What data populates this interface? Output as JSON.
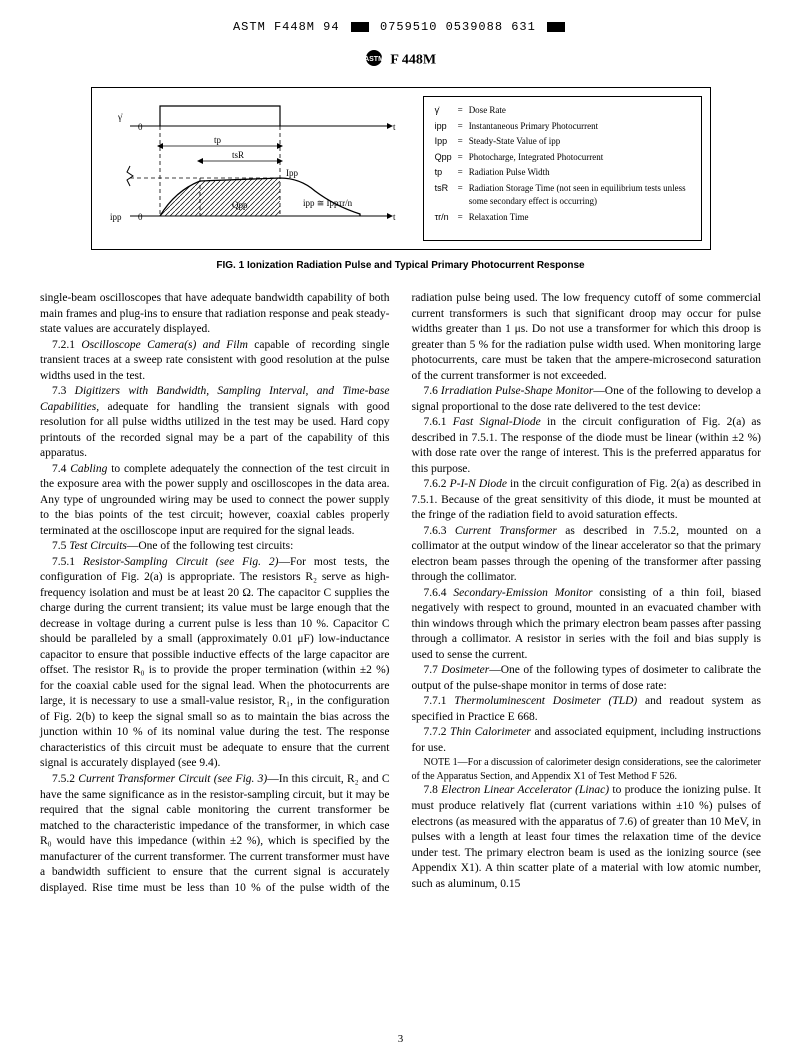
{
  "top_code": {
    "parts": [
      "ASTM F448M 94",
      "0759510 0539088 631"
    ]
  },
  "doc_header": "F 448M",
  "figure": {
    "caption": "FIG. 1   Ionization Radiation Pulse and Typical Primary Photocurrent Response",
    "labels": {
      "gamma_dot": "γ̇",
      "ipp_lower": "ipp",
      "Ipp": "Ipp",
      "tp": "tp",
      "tsR": "tsR",
      "Qpp": "Qpp",
      "approx": "ipp ≅ Ippτr/n",
      "t1": "t",
      "t2": "t",
      "zero1": "0",
      "zero2": "0"
    },
    "legend": [
      {
        "sym": "γ̇",
        "eq": "=",
        "desc": "Dose Rate"
      },
      {
        "sym": "ipp",
        "eq": "=",
        "desc": "Instantaneous Primary Photocurrent"
      },
      {
        "sym": "Ipp",
        "eq": "=",
        "desc": "Steady-State Value of ipp"
      },
      {
        "sym": "Qpp",
        "eq": "=",
        "desc": "Photocharge, Integrated Photocurrent"
      },
      {
        "sym": "tp",
        "eq": "=",
        "desc": "Radiation Pulse Width"
      },
      {
        "sym": "tsR",
        "eq": "=",
        "desc": "Radiation Storage Time (not seen in equilibrium tests unless some secondary effect is occurring)"
      },
      {
        "sym": "τr/n",
        "eq": "=",
        "desc": "Relaxation Time"
      }
    ]
  },
  "body": {
    "p1": "single-beam oscilloscopes that have adequate bandwidth capability of both main frames and plug-ins to ensure that radiation response and peak steady-state values are accurately displayed.",
    "p2_lead": "7.2.1 ",
    "p2_italic": "Oscilloscope Camera(s) and Film",
    "p2_rest": " capable of recording single transient traces at a sweep rate consistent with good resolution at the pulse widths used in the test.",
    "p3_lead": "7.3 ",
    "p3_italic": "Digitizers with Bandwidth, Sampling Interval, and Time-base Capabilities,",
    "p3_rest": " adequate for handling the transient signals with good resolution for all pulse widths utilized in the test may be used. Hard copy printouts of the recorded signal may be a part of the capability of this apparatus.",
    "p4_lead": "7.4 ",
    "p4_italic": "Cabling",
    "p4_rest": " to complete adequately the connection of the test circuit in the exposure area with the power supply and oscilloscopes in the data area. Any type of ungrounded wiring may be used to connect the power supply to the bias points of the test circuit; however, coaxial cables properly terminated at the oscilloscope input are required for the signal leads.",
    "p5_lead": "7.5 ",
    "p5_italic": "Test Circuits",
    "p5_rest": "—One of the following test circuits:",
    "p6_lead": "7.5.1 ",
    "p6_italic": "Resistor-Sampling Circuit (see Fig. 2)",
    "p6_rest": "—For most tests, the configuration of Fig. 2(a) is appropriate. The resistors R₂ serve as high-frequency isolation and must be at least 20 Ω. The capacitor C supplies the charge during the current transient; its value must be large enough that the decrease in voltage during a current pulse is less than 10 %. Capacitor C should be paralleled by a small (approximately 0.01 μF) low-inductance capacitor to ensure that possible inductive effects of the large capacitor are offset. The resistor R₀ is to provide the proper termination (within ±2 %) for the coaxial cable used for the signal lead. When the photocurrents are large, it is necessary to use a small-value resistor, R₁, in the configuration of Fig. 2(b) to keep the signal small so as to maintain the bias across the junction within 10 % of its nominal value during the test. The response characteristics of this circuit must be adequate to ensure that the current signal is accurately displayed (see 9.4).",
    "p7_lead": "7.5.2 ",
    "p7_italic": "Current Transformer Circuit (see Fig. 3)",
    "p7_rest": "—In this circuit, R₂ and C have the same significance as in the resistor-sampling circuit, but it may be required that the signal cable monitoring the current transformer be matched to the characteristic impedance of the transformer, in which case R₀ would have this impedance (within ±2 %), which is specified by the manufacturer of the current transformer. The current transformer must have a bandwidth sufficient to ensure that the current signal is accurately displayed. Rise time must be less than 10 % of the pulse width of the radiation pulse being used. The low frequency cutoff of some commercial current transformers is such that significant droop may occur for pulse widths greater than 1 μs. Do not use a transformer for which this droop is greater than 5 % for the radiation pulse width used. When monitoring large photocurrents, care must be taken that the ampere-microsecond saturation of the current transformer is not exceeded.",
    "p8_lead": "7.6 ",
    "p8_italic": "Irradiation Pulse-Shape Monitor",
    "p8_rest": "—One of the following to develop a signal proportional to the dose rate delivered to the test device:",
    "p9_lead": "7.6.1 ",
    "p9_italic": "Fast Signal-Diode",
    "p9_rest": " in the circuit configuration of Fig. 2(a) as described in 7.5.1. The response of the diode must be linear (within ±2 %) with dose rate over the range of interest. This is the preferred apparatus for this purpose.",
    "p10_lead": "7.6.2 ",
    "p10_italic": "P-I-N Diode",
    "p10_rest": " in the circuit configuration of Fig. 2(a) as described in 7.5.1. Because of the great sensitivity of this diode, it must be mounted at the fringe of the radiation field to avoid saturation effects.",
    "p11_lead": "7.6.3 ",
    "p11_italic": "Current Transformer",
    "p11_rest": " as described in 7.5.2, mounted on a collimator at the output window of the linear accelerator so that the primary electron beam passes through the opening of the transformer after passing through the collimator.",
    "p12_lead": "7.6.4 ",
    "p12_italic": "Secondary-Emission Monitor",
    "p12_rest": " consisting of a thin foil, biased negatively with respect to ground, mounted in an evacuated chamber with thin windows through which the primary electron beam passes after passing through a collimator. A resistor in series with the foil and bias supply is used to sense the current.",
    "p13_lead": "7.7 ",
    "p13_italic": "Dosimeter",
    "p13_rest": "—One of the following types of dosimeter to calibrate the output of the pulse-shape monitor in terms of dose rate:",
    "p14_lead": "7.7.1 ",
    "p14_italic": "Thermoluminescent Dosimeter (TLD)",
    "p14_rest": " and readout system as specified in Practice E 668.",
    "p15_lead": "7.7.2 ",
    "p15_italic": "Thin Calorimeter",
    "p15_rest": " and associated equipment, including instructions for use.",
    "note": "NOTE 1—For a discussion of calorimeter design considerations, see the calorimeter of the Apparatus Section, and Appendix X1 of Test Method F 526.",
    "p16_lead": "7.8 ",
    "p16_italic": "Electron Linear Accelerator (Linac)",
    "p16_rest": " to produce the ionizing pulse. It must produce relatively flat (current variations within ±10 %) pulses of electrons (as measured with the apparatus of 7.6) of greater than 10 MeV, in pulses with a length at least four times the relaxation time of the device under test. The primary electron beam is used as the ionizing source (see Appendix X1). A thin scatter plate of a material with low atomic number, such as aluminum, 0.15"
  },
  "page_number": "3"
}
